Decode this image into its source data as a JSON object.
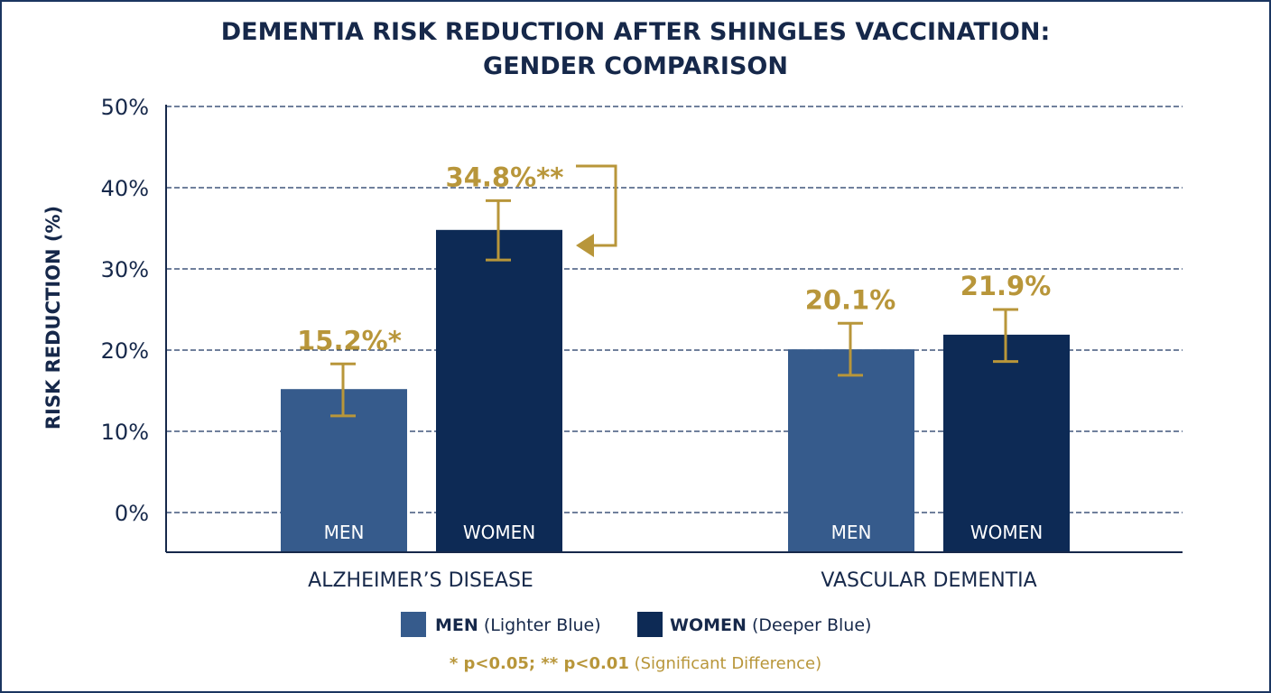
{
  "chart_data": {
    "type": "bar",
    "title_line1": "DEMENTIA RISK REDUCTION AFTER SHINGLES VACCINATION:",
    "title_line2": "GENDER COMPARISON",
    "ylabel": "RISK REDUCTION (%)",
    "ylim": [
      0,
      50
    ],
    "yticks": [
      "0%",
      "10%",
      "20%",
      "30%",
      "40%",
      "50%"
    ],
    "grid": true,
    "categories": [
      "ALZHEIMER’S DISEASE",
      "VASCULAR DEMENTIA"
    ],
    "series": [
      {
        "name": "MEN",
        "color": "#365b8c",
        "values": [
          15.2,
          20.1
        ],
        "err_low": [
          11.9,
          16.9
        ],
        "err_high": [
          18.3,
          23.3
        ],
        "labels": [
          "15.2%*",
          "20.1%"
        ]
      },
      {
        "name": "WOMEN",
        "color": "#0d2a55",
        "values": [
          34.8,
          21.9
        ],
        "err_low": [
          31.1,
          18.6
        ],
        "err_high": [
          38.4,
          25.0
        ],
        "labels": [
          "34.8%**",
          "21.9%"
        ]
      }
    ],
    "bar_labels": [
      "MEN",
      "WOMEN"
    ],
    "accent_color": "#b8963a",
    "legend": [
      {
        "bold": "MEN",
        "text": " (Lighter Blue)"
      },
      {
        "bold": "WOMEN",
        "text": " (Deeper Blue)"
      }
    ],
    "legend_placement": "bottom",
    "footnote_bold": "* p<0.05; ** p<0.01",
    "footnote_text": " (Significant Difference)"
  }
}
